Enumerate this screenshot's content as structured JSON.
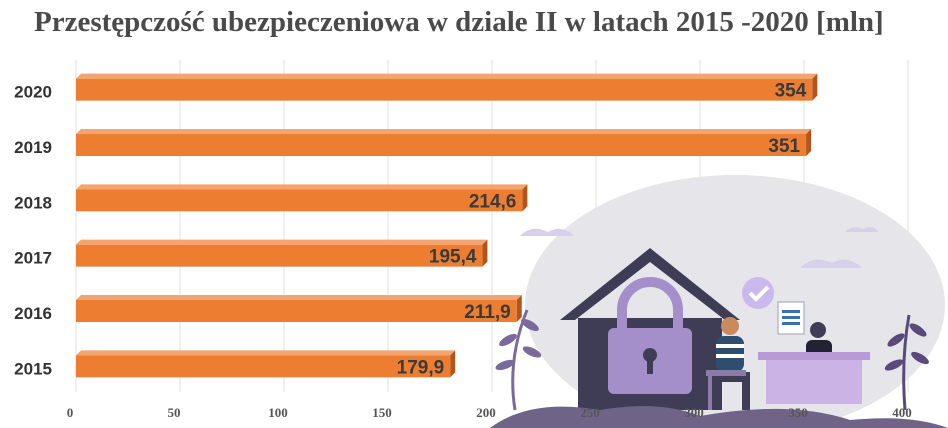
{
  "chart_data": {
    "type": "bar",
    "orientation": "horizontal",
    "title": "Przestępczość ubezpieczeniowa w dziale II w latach 2015 -2020 [mln]",
    "categories": [
      "2020",
      "2019",
      "2018",
      "2017",
      "2016",
      "2015"
    ],
    "values": [
      354,
      351,
      214.6,
      195.4,
      211.9,
      179.9
    ],
    "value_labels": [
      "354",
      "351",
      "214,6",
      "195,4",
      "211,9",
      "179,9"
    ],
    "xlim": [
      0,
      400
    ],
    "x_ticks": [
      "0",
      "50",
      "100",
      "150",
      "200",
      "250",
      "300",
      "350",
      "400"
    ],
    "grid": true,
    "bar_color": "#ED7D31",
    "bar_side_color": "#B5541A"
  },
  "illustration": {
    "description_icons": [
      "house-icon",
      "padlock-icon",
      "person-icon",
      "desk-icon",
      "document-icon",
      "checkmark-icon",
      "plant-icon",
      "cloud-icon"
    ]
  }
}
